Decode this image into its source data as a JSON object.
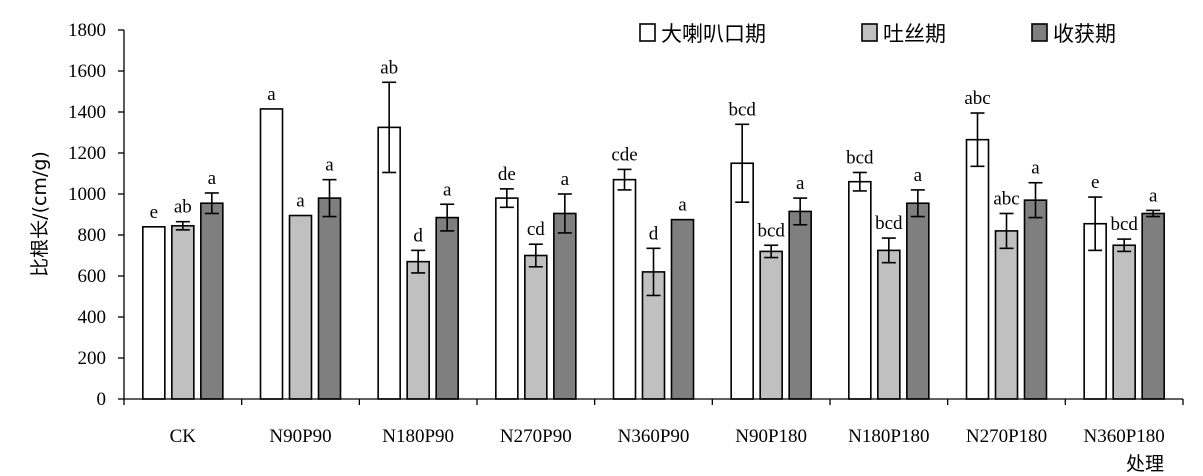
{
  "chart_data": {
    "type": "bar",
    "ylabel": "比根长/(cm/g)",
    "xlabel": "处理",
    "ylim": [
      0,
      1800
    ],
    "yticks": [
      0,
      200,
      400,
      600,
      800,
      1000,
      1200,
      1400,
      1600,
      1800
    ],
    "categories": [
      "CK",
      "N90P90",
      "N180P90",
      "N270P90",
      "N360P90",
      "N90P180",
      "N180P180",
      "N270P180",
      "N360P180"
    ],
    "legend_position": "top-right",
    "series": [
      {
        "name": "大喇叭口期",
        "color": "#ffffff",
        "values": [
          840,
          1415,
          1325,
          980,
          1070,
          1150,
          1060,
          1265,
          855
        ],
        "errors": [
          0,
          0,
          220,
          45,
          50,
          190,
          45,
          130,
          130
        ],
        "labels": [
          "e",
          "a",
          "ab",
          "de",
          "cde",
          "bcd",
          "bcd",
          "abc",
          "e"
        ]
      },
      {
        "name": "吐丝期",
        "color": "#c0c0c0",
        "values": [
          845,
          895,
          670,
          700,
          620,
          720,
          725,
          820,
          750
        ],
        "errors": [
          20,
          0,
          55,
          55,
          115,
          30,
          60,
          85,
          30
        ],
        "labels": [
          "ab",
          "a",
          "d",
          "cd",
          "d",
          "bcd",
          "bcd",
          "abc",
          "bcd"
        ]
      },
      {
        "name": "收获期",
        "color": "#7f7f7f",
        "values": [
          955,
          980,
          885,
          905,
          875,
          915,
          955,
          970,
          905
        ],
        "errors": [
          50,
          90,
          65,
          95,
          0,
          65,
          65,
          85,
          15
        ],
        "labels": [
          "a",
          "a",
          "a",
          "a",
          "a",
          "a",
          "a",
          "a",
          "a"
        ]
      }
    ]
  }
}
